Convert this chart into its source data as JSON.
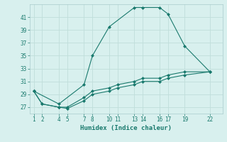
{
  "xlabel": "Humidex (Indice chaleur)",
  "ylabel": "",
  "background_color": "#d8f0ee",
  "grid_color": "#c0deda",
  "line_color": "#1a7a6e",
  "xticks": [
    1,
    2,
    4,
    5,
    7,
    8,
    10,
    11,
    13,
    14,
    16,
    17,
    19,
    22
  ],
  "yticks": [
    27,
    29,
    31,
    33,
    35,
    37,
    39,
    41
  ],
  "xlim": [
    0.5,
    23.5
  ],
  "ylim": [
    26.0,
    43.0
  ],
  "series": [
    {
      "x": [
        1,
        4,
        7,
        8,
        10,
        13,
        14,
        16,
        17,
        19,
        22
      ],
      "y": [
        29.5,
        27.5,
        30.5,
        35,
        39.5,
        42.5,
        42.5,
        42.5,
        41.5,
        36.5,
        32.5
      ]
    },
    {
      "x": [
        1,
        2,
        4,
        5,
        7,
        8,
        10,
        11,
        13,
        14,
        16,
        17,
        19,
        22
      ],
      "y": [
        29.5,
        27.5,
        27.0,
        27.0,
        28.5,
        29.5,
        30.0,
        30.5,
        31.0,
        31.5,
        31.5,
        32.0,
        32.5,
        32.5
      ]
    },
    {
      "x": [
        1,
        2,
        4,
        5,
        7,
        8,
        10,
        11,
        13,
        14,
        16,
        17,
        19,
        22
      ],
      "y": [
        29.5,
        27.5,
        27.0,
        26.8,
        28.0,
        29.0,
        29.5,
        30.0,
        30.5,
        31.0,
        31.0,
        31.5,
        32.0,
        32.5
      ]
    }
  ]
}
